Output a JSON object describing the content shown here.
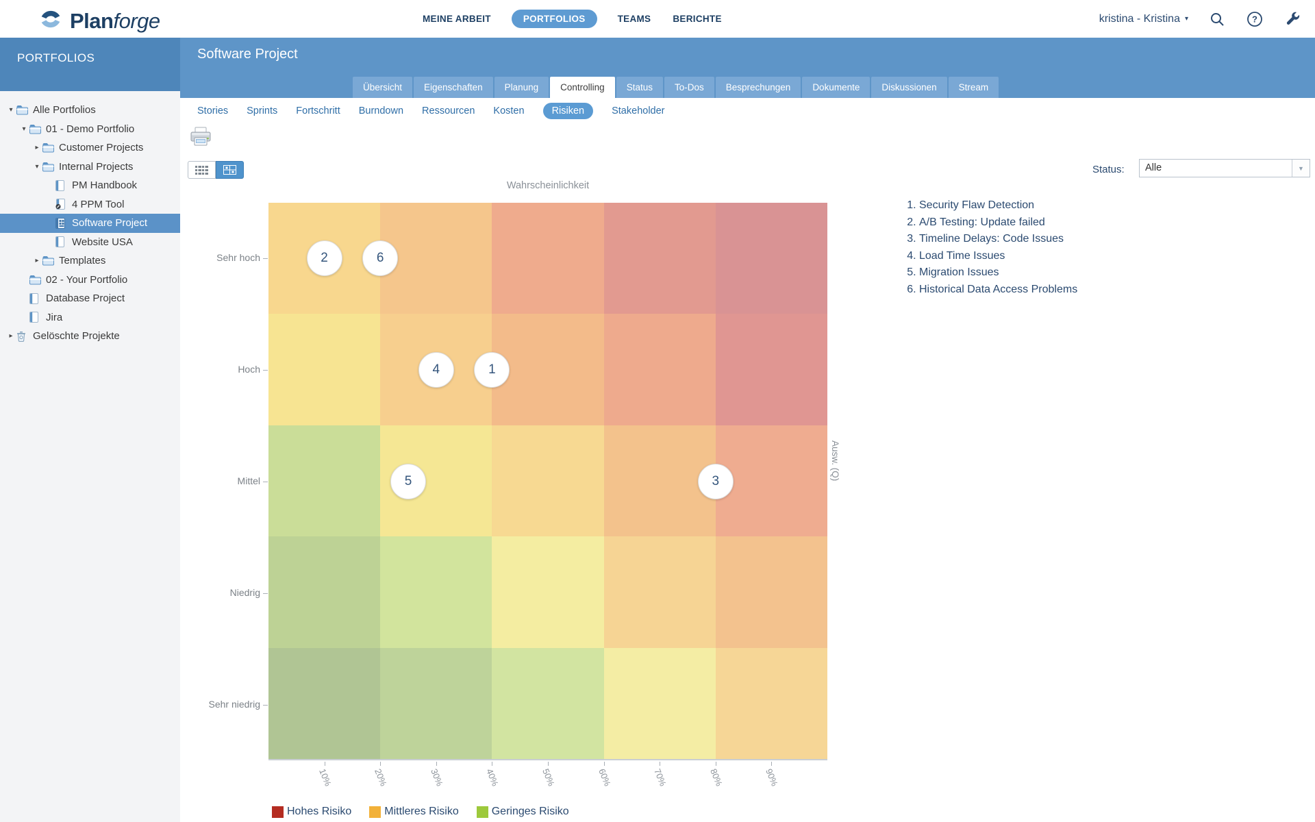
{
  "header": {
    "brand": {
      "name_bold": "Plan",
      "name_light": "forge"
    },
    "nav_items": [
      {
        "label": "MEINE ARBEIT",
        "active": false
      },
      {
        "label": "PORTFOLIOS",
        "active": true
      },
      {
        "label": "TEAMS",
        "active": false
      },
      {
        "label": "BERICHTE",
        "active": false
      }
    ],
    "user_menu": {
      "label": "kristina - Kristina",
      "caret": "▾"
    },
    "icons": {
      "search": "magnifier",
      "help": "question-circle",
      "admin": "wrench"
    }
  },
  "sidebar": {
    "title": "PORTFOLIOS",
    "tree": [
      {
        "label": "Alle Portfolios",
        "level": 0,
        "state": "expanded",
        "icon": "folder"
      },
      {
        "label": "01 - Demo Portfolio",
        "level": 1,
        "state": "expanded",
        "icon": "folder"
      },
      {
        "label": "Customer Projects",
        "level": 2,
        "state": "collapsed",
        "icon": "folder"
      },
      {
        "label": "Internal Projects",
        "level": 2,
        "state": "expanded",
        "icon": "folder"
      },
      {
        "label": "PM Handbook",
        "level": 3,
        "state": "leaf",
        "icon": "project"
      },
      {
        "label": "4 PPM Tool",
        "level": 3,
        "state": "leaf",
        "icon": "project-edit"
      },
      {
        "label": "Software Project",
        "level": 3,
        "state": "leaf",
        "icon": "project-open",
        "selected": true
      },
      {
        "label": "Website USA",
        "level": 3,
        "state": "leaf",
        "icon": "project"
      },
      {
        "label": "Templates",
        "level": 2,
        "state": "collapsed",
        "icon": "folder"
      },
      {
        "label": "02 - Your Portfolio",
        "level": 1,
        "state": "leaf",
        "icon": "folder"
      },
      {
        "label": "Database Project",
        "level": 1,
        "state": "leaf",
        "icon": "project"
      },
      {
        "label": "Jira",
        "level": 1,
        "state": "leaf",
        "icon": "project"
      },
      {
        "label": "Gelöschte Projekte",
        "level": 0,
        "state": "collapsed",
        "icon": "trash"
      }
    ]
  },
  "content": {
    "title": "Software Project",
    "tabs": [
      {
        "label": "Übersicht",
        "active": false
      },
      {
        "label": "Eigenschaften",
        "active": false
      },
      {
        "label": "Planung",
        "active": false
      },
      {
        "label": "Controlling",
        "active": true
      },
      {
        "label": "Status",
        "active": false
      },
      {
        "label": "To-Dos",
        "active": false
      },
      {
        "label": "Besprechungen",
        "active": false
      },
      {
        "label": "Dokumente",
        "active": false
      },
      {
        "label": "Diskussionen",
        "active": false
      },
      {
        "label": "Stream",
        "active": false
      }
    ],
    "subtabs": [
      {
        "label": "Stories",
        "active": false
      },
      {
        "label": "Sprints",
        "active": false
      },
      {
        "label": "Fortschritt",
        "active": false
      },
      {
        "label": "Burndown",
        "active": false
      },
      {
        "label": "Ressourcen",
        "active": false
      },
      {
        "label": "Kosten",
        "active": false
      },
      {
        "label": "Risiken",
        "active": true
      },
      {
        "label": "Stakeholder",
        "active": false
      }
    ],
    "status_filter": {
      "label": "Status:",
      "value": "Alle"
    }
  },
  "chart_data": {
    "type": "heatmap",
    "title": "Wahrscheinlichkeit",
    "right_axis_label": "Ausw. (Q)",
    "x_ticks": [
      "10%",
      "20%",
      "30%",
      "40%",
      "50%",
      "60%",
      "70%",
      "80%",
      "90%"
    ],
    "x_range": [
      0,
      100
    ],
    "y_categories": [
      "Sehr hoch",
      "Hoch",
      "Mittel",
      "Niedrig",
      "Sehr niedrig"
    ],
    "grid": "5x5 risk matrix, no gaps",
    "cell_colors": [
      [
        "#f8d78e",
        "#f5c68c",
        "#efab8d",
        "#e29a90",
        "#d99394"
      ],
      [
        "#f7e492",
        "#f7cf8e",
        "#f3bb8a",
        "#eeaa8d",
        "#e09692"
      ],
      [
        "#cadd98",
        "#f5e794",
        "#f7d992",
        "#f3c28c",
        "#efac90"
      ],
      [
        "#bdd295",
        "#d2e49d",
        "#f4eda1",
        "#f6d494",
        "#f3c28e"
      ],
      [
        "#b0c594",
        "#bed39a",
        "#d2e4a1",
        "#f4eda4",
        "#f6d696"
      ]
    ],
    "points": [
      {
        "id": 1,
        "title": "Security Flaw Detection",
        "probability_pct": 40,
        "impact": "Hoch"
      },
      {
        "id": 2,
        "title": "A/B Testing: Update failed",
        "probability_pct": 10,
        "impact": "Sehr hoch"
      },
      {
        "id": 3,
        "title": "Timeline Delays: Code Issues",
        "probability_pct": 80,
        "impact": "Mittel"
      },
      {
        "id": 4,
        "title": "Load Time Issues",
        "probability_pct": 30,
        "impact": "Hoch"
      },
      {
        "id": 5,
        "title": "Migration Issues",
        "probability_pct": 25,
        "impact": "Mittel"
      },
      {
        "id": 6,
        "title": "Historical Data Access Problems",
        "probability_pct": 20,
        "impact": "Sehr hoch"
      }
    ],
    "legend": [
      {
        "label": "Hohes Risiko",
        "color": "#b42c21"
      },
      {
        "label": "Mittleres Risiko",
        "color": "#f2b139"
      },
      {
        "label": "Geringes Risiko",
        "color": "#9dc93c"
      }
    ],
    "legend_position": "bottom-left"
  }
}
